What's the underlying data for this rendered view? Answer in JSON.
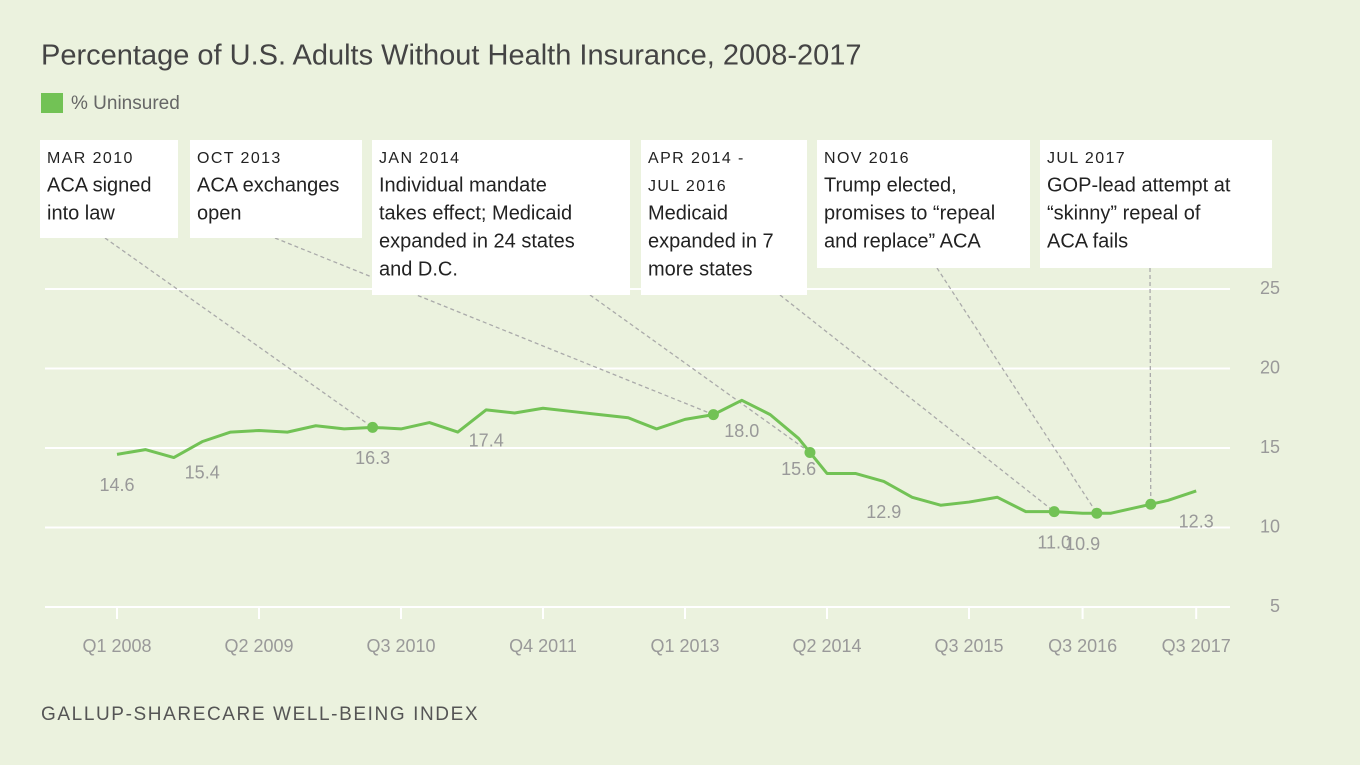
{
  "chart_data": {
    "type": "line",
    "title": "Percentage of U.S. Adults Without Health Insurance, 2008-2017",
    "source": "GALLUP-SHARECARE WELL-BEING INDEX",
    "categories": [
      "Q1 2008",
      null,
      null,
      null,
      null,
      "Q2 2009",
      null,
      null,
      null,
      null,
      "Q3 2010",
      null,
      null,
      null,
      null,
      "Q4 2011",
      null,
      null,
      null,
      null,
      "Q1 2013",
      null,
      null,
      null,
      null,
      "Q2 2014",
      null,
      null,
      null,
      null,
      "Q3 2015",
      null,
      null,
      null,
      "Q3 2016",
      null,
      null,
      null,
      "Q3 2017"
    ],
    "series": [
      {
        "name": "% Uninsured",
        "color": "#72c255",
        "values": [
          14.6,
          14.9,
          14.4,
          15.4,
          16.0,
          16.1,
          16.0,
          16.4,
          16.2,
          16.3,
          16.2,
          16.6,
          16.0,
          17.4,
          17.2,
          17.5,
          17.3,
          17.1,
          16.9,
          16.2,
          16.8,
          17.1,
          18.0,
          17.1,
          15.6,
          13.4,
          13.4,
          12.9,
          11.9,
          11.4,
          11.6,
          11.9,
          11.0,
          11.0,
          10.9,
          10.9,
          11.3,
          11.7,
          12.3
        ],
        "value_labels": [
          "14.6",
          null,
          null,
          "15.4",
          null,
          null,
          null,
          null,
          null,
          "16.3",
          null,
          null,
          null,
          "17.4",
          null,
          null,
          null,
          null,
          null,
          null,
          null,
          null,
          "18.0",
          null,
          "15.6",
          null,
          null,
          "12.9",
          null,
          null,
          null,
          null,
          null,
          "11.0",
          "10.9",
          null,
          null,
          null,
          "12.3"
        ]
      }
    ],
    "ylim": [
      5,
      25
    ],
    "yticks": [
      5,
      10,
      15,
      20,
      25
    ],
    "grid": true,
    "y_axis_side": "right",
    "annotations": [
      {
        "date": [
          "MAR 2010"
        ],
        "text": [
          "ACA signed",
          "into law"
        ]
      },
      {
        "date": [
          "OCT 2013"
        ],
        "text": [
          "ACA exchanges",
          "open"
        ]
      },
      {
        "date": [
          "JAN 2014"
        ],
        "text": [
          "Individual mandate",
          "takes effect; Medicaid",
          "expanded in 24 states",
          "and D.C."
        ]
      },
      {
        "date": [
          "APR 2014 -",
          "JUL 2016"
        ],
        "text": [
          "Medicaid",
          "expanded in 7",
          "more states"
        ]
      },
      {
        "date": [
          "NOV 2016"
        ],
        "text": [
          "Trump elected,",
          "promises to “repeal",
          "and replace” ACA"
        ]
      },
      {
        "date": [
          "JUL 2017"
        ],
        "text": [
          "GOP-lead attempt at",
          "“skinny” repeal of",
          "ACA fails"
        ]
      }
    ]
  }
}
